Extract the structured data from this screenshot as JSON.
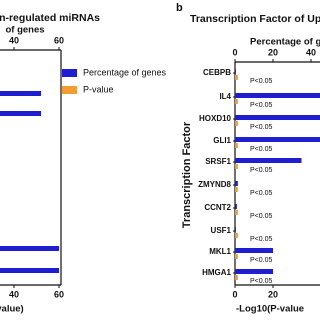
{
  "chart_data": [
    {
      "type": "bar",
      "orientation": "horizontal",
      "title": "own-regulated miRNAs",
      "xlabel": "of genes",
      "x2label": "value)",
      "categories": [
        null,
        null,
        null,
        null
      ],
      "series": [
        {
          "color": "#1f1fd1",
          "values": [
            52,
            52,
            60,
            60
          ]
        }
      ],
      "legend": [
        {
          "name": "Percentage of genes",
          "color": "#1f1fd1"
        },
        {
          "name": "P-value",
          "color": "#f39c34"
        }
      ],
      "xlim": [
        40,
        60
      ],
      "xticks": [
        40,
        60
      ],
      "x2lim": [
        40,
        60
      ],
      "x2ticks": [
        40,
        60
      ]
    },
    {
      "type": "bar",
      "orientation": "horizontal",
      "panel_label": "b",
      "title": "Transcription Factor of Up-",
      "xlabel": "Percentage of g",
      "x2label": "-Log10(P-value",
      "ylabel": "Transcription Factor",
      "categories": [
        "CEBPB",
        "IL4",
        "HOXD10",
        "GLI1",
        "SRSF1",
        "ZMYND8",
        "CCNT2",
        "USF1",
        "MKL1",
        "HMGA1"
      ],
      "series": [
        {
          "color": "#1f1fd1",
          "values": [
            0.5,
            50,
            50,
            50,
            35,
            1.5,
            1,
            0.5,
            20,
            20
          ]
        },
        {
          "color": "#f39c34",
          "axis": "x2",
          "values": [
            1.5,
            1.5,
            1.5,
            1.5,
            1.5,
            1.5,
            1.5,
            1.5,
            1.5,
            1.5
          ]
        }
      ],
      "annotations": [
        "P<0.05",
        "P<0.05",
        "P<0.05",
        "P<0.05",
        "P<0.05",
        "P<0.05",
        "P<0.05",
        "P<0.05",
        "P<0.05",
        "P<0.05"
      ],
      "xlim": [
        0,
        50
      ],
      "xticks": [
        0,
        20,
        40
      ],
      "x2lim": [
        0,
        50
      ],
      "x2ticks": [
        0,
        20
      ]
    }
  ]
}
